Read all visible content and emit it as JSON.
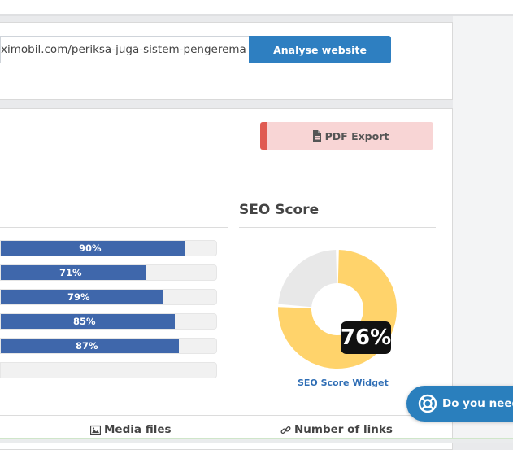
{
  "url_form": {
    "url_value": "ximobil.com/periksa-juga-sistem-pengeremar",
    "analyse_label": "Analyse website"
  },
  "pdf_export": {
    "label": "PDF Export"
  },
  "seo_score": {
    "title": "SEO Score",
    "percent": 76,
    "percent_label": "76%",
    "widget_link": "SEO Score Widget",
    "colors": {
      "filled": "#ffd36b",
      "empty": "#e8e8e8"
    }
  },
  "bars": [
    {
      "percent": 90,
      "label": "90%"
    },
    {
      "percent": 71,
      "label": "71%"
    },
    {
      "percent": 79,
      "label": "79%"
    },
    {
      "percent": 85,
      "label": "85%"
    },
    {
      "percent": 87,
      "label": "87%"
    },
    {
      "percent": 0,
      "label": ""
    }
  ],
  "tabs": {
    "media_files": "Media files",
    "number_of_links": "Number of links"
  },
  "help": {
    "label": "Do you need"
  },
  "colors": {
    "accent_blue": "#2e7fc1",
    "bar_blue": "#3f67ab",
    "pdf_red": "#e05a51"
  }
}
